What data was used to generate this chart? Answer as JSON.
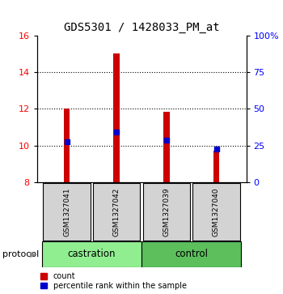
{
  "title": "GDS5301 / 1428033_PM_at",
  "samples": [
    "GSM1327041",
    "GSM1327042",
    "GSM1327039",
    "GSM1327040"
  ],
  "groups": [
    "castration",
    "castration",
    "control",
    "control"
  ],
  "bar_bottom": 8,
  "bar_tops": [
    12.0,
    15.0,
    11.85,
    9.7
  ],
  "percentile_values": [
    10.2,
    10.75,
    10.3,
    9.82
  ],
  "ylim_left": [
    8,
    16
  ],
  "ylim_right": [
    0,
    100
  ],
  "yticks_left": [
    8,
    10,
    12,
    14,
    16
  ],
  "yticks_right": [
    0,
    25,
    50,
    75,
    100
  ],
  "ytick_labels_right": [
    "0",
    "25",
    "50",
    "75",
    "100%"
  ],
  "bar_color": "#CC0000",
  "percentile_color": "#0000CC",
  "bar_width": 0.12,
  "grid_yticks": [
    10,
    12,
    14
  ],
  "legend_count_label": "count",
  "legend_percentile_label": "percentile rank within the sample",
  "protocol_label": "protocol",
  "group_label_castration": "castration",
  "group_label_control": "control",
  "background_color": "#ffffff",
  "label_box_color": "#d3d3d3",
  "green_light": "#90EE90",
  "green_medium": "#5CBF5C"
}
